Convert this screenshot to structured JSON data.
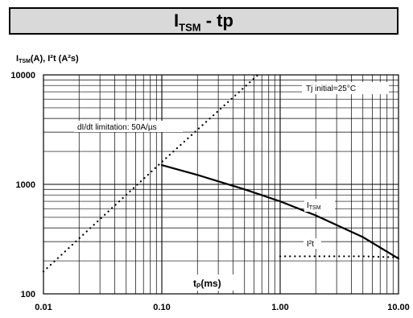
{
  "chart_data": {
    "type": "line",
    "title_main": "I",
    "title_sub": "TSM",
    "title_rest": " - tp",
    "ylabel_main": "I",
    "ylabel_sub": "TSM",
    "ylabel_rest": "(A), I²t (A²s)",
    "xlabel_main": "t",
    "xlabel_sub": "P",
    "xlabel_rest": "(ms)",
    "x_scale": "log",
    "y_scale": "log",
    "xlim": [
      0.01,
      10
    ],
    "ylim": [
      100,
      10000
    ],
    "x_ticks": [
      "0.01",
      "0.10",
      "1.00",
      "10.00"
    ],
    "y_ticks": [
      "100",
      "1000",
      "10000"
    ],
    "grid": true,
    "annotations": {
      "tj": "Tj initial=25°C",
      "didt": "dI/dt limitation: 50A/µs",
      "itsm_main": "I",
      "itsm_sub": "TSM",
      "i2t": "I²t"
    },
    "series": [
      {
        "name": "ITSM",
        "style": "solid",
        "x": [
          0.1,
          0.2,
          0.5,
          1,
          2,
          5,
          10
        ],
        "y": [
          1500,
          1220,
          900,
          700,
          520,
          330,
          210
        ]
      },
      {
        "name": "I²t",
        "style": "dotted",
        "x": [
          1,
          2,
          5,
          10
        ],
        "y": [
          220,
          220,
          220,
          215
        ]
      },
      {
        "name": "dI/dt limitation",
        "style": "dotted",
        "x": [
          0.01,
          0.1,
          0.65
        ],
        "y": [
          160,
          1600,
          10000
        ]
      }
    ]
  }
}
